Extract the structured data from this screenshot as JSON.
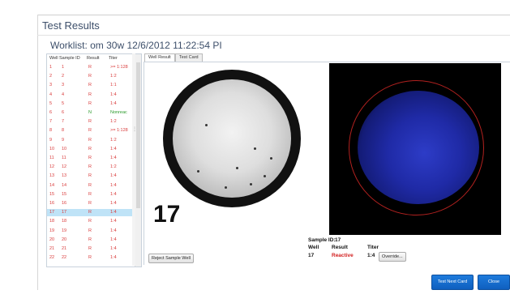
{
  "window": {
    "title": "Test Results"
  },
  "worklist": {
    "label": "Worklist: om 30w 12/6/2012 11:22:54 PI"
  },
  "list": {
    "headers": [
      "Well",
      "Sample ID",
      "Result",
      "Titer"
    ],
    "rows": [
      {
        "well": "1",
        "sample": "1",
        "result": "R",
        "titer": ">= 1:128"
      },
      {
        "well": "2",
        "sample": "2",
        "result": "R",
        "titer": "1:2"
      },
      {
        "well": "3",
        "sample": "3",
        "result": "R",
        "titer": "1:1"
      },
      {
        "well": "4",
        "sample": "4",
        "result": "R",
        "titer": "1:4"
      },
      {
        "well": "5",
        "sample": "5",
        "result": "R",
        "titer": "1:4"
      },
      {
        "well": "6",
        "sample": "6",
        "result": "N",
        "titer": "Nonreac"
      },
      {
        "well": "7",
        "sample": "7",
        "result": "R",
        "titer": "1:2"
      },
      {
        "well": "8",
        "sample": "8",
        "result": "R",
        "titer": ">= 1:128"
      },
      {
        "well": "9",
        "sample": "9",
        "result": "R",
        "titer": "1:2"
      },
      {
        "well": "10",
        "sample": "10",
        "result": "R",
        "titer": "1:4"
      },
      {
        "well": "11",
        "sample": "11",
        "result": "R",
        "titer": "1:4"
      },
      {
        "well": "12",
        "sample": "12",
        "result": "R",
        "titer": "1:2"
      },
      {
        "well": "13",
        "sample": "13",
        "result": "R",
        "titer": "1:4"
      },
      {
        "well": "14",
        "sample": "14",
        "result": "R",
        "titer": "1:4"
      },
      {
        "well": "15",
        "sample": "15",
        "result": "R",
        "titer": "1:4"
      },
      {
        "well": "16",
        "sample": "16",
        "result": "R",
        "titer": "1:4"
      },
      {
        "well": "17",
        "sample": "17",
        "result": "R",
        "titer": "1:4"
      },
      {
        "well": "18",
        "sample": "18",
        "result": "R",
        "titer": "1:4"
      },
      {
        "well": "19",
        "sample": "19",
        "result": "R",
        "titer": "1:4"
      },
      {
        "well": "20",
        "sample": "20",
        "result": "R",
        "titer": "1:4"
      },
      {
        "well": "21",
        "sample": "21",
        "result": "R",
        "titer": "1:4"
      },
      {
        "well": "22",
        "sample": "22",
        "result": "R",
        "titer": "1:4"
      }
    ],
    "selected_well": "17"
  },
  "tabs": [
    "Well Result",
    "Test Card"
  ],
  "well_image": {
    "number": "17"
  },
  "info": {
    "sample_id_label": "Sample ID:",
    "sample_id_value": "17",
    "well_label": "Well",
    "result_label": "Result",
    "titer_label": "Titer",
    "well_value": "17",
    "result_value": "Reactive",
    "titer_value": "1:4"
  },
  "buttons": {
    "reject": "Reject Sample Well",
    "override": "Override...",
    "next_card": "Test Next Card",
    "close": "Close"
  },
  "colors": {
    "reactive": "#d21e1e",
    "row_text": "#d93a3a",
    "nonreactive": "#2a9a2a",
    "selected_row": "#bfe3f7",
    "button_blue": "#1e7bdc"
  }
}
